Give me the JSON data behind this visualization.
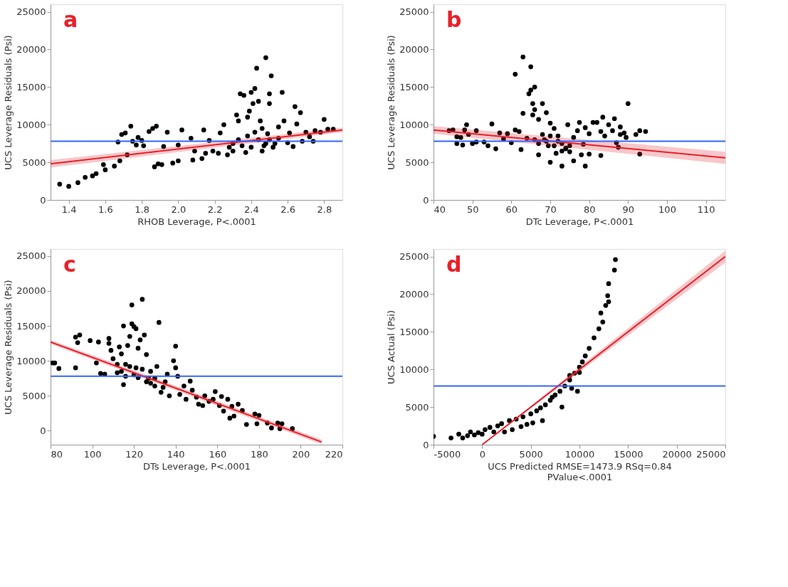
{
  "chart_data": [
    {
      "type": "scatter",
      "annotations": [
        "a"
      ],
      "xlabel": "RHOB Leverage, P<.0001",
      "ylabel": "UCS Leverage Residuals (Psi)",
      "xlim": [
        1.3,
        2.9
      ],
      "xticks": [
        1.4,
        1.6,
        1.8,
        {
          "value": 2,
          "label": "2.0"
        },
        2.2,
        2.4,
        2.6,
        2.8
      ],
      "ylim": [
        0,
        26000
      ],
      "yticks": [
        0,
        5000,
        10000,
        15000,
        20000,
        25000
      ],
      "grid": false,
      "legend": false,
      "marker": "circle",
      "ref_lines": [
        {
          "axis": "y",
          "value": 7800,
          "color": "#3366ff"
        }
      ],
      "series": [
        {
          "type": "scatter",
          "color": "#000000",
          "x": [
            1.35,
            1.4,
            1.45,
            1.49,
            1.53,
            1.55,
            1.59,
            1.6,
            1.65,
            1.67,
            1.68,
            1.69,
            1.71,
            1.72,
            1.74,
            1.75,
            1.77,
            1.78,
            1.8,
            1.81,
            1.84,
            1.86,
            1.87,
            1.88,
            1.89,
            1.91,
            1.92,
            1.94,
            1.97,
            2.0,
            2.0,
            2.02,
            2.07,
            2.08,
            2.09,
            2.13,
            2.14,
            2.15,
            2.17,
            2.19,
            2.22,
            2.23,
            2.25,
            2.27,
            2.3,
            2.32,
            2.33,
            2.34,
            2.36,
            2.37,
            2.38,
            2.39,
            2.4,
            2.41,
            2.42,
            2.43,
            2.44,
            2.45,
            2.46,
            2.47,
            2.48,
            2.49,
            2.5,
            2.5,
            2.51,
            2.52,
            2.55,
            2.57,
            2.58,
            2.6,
            2.61,
            2.63,
            2.64,
            2.65,
            2.67,
            2.68,
            2.7,
            2.72,
            2.74,
            2.75,
            2.78,
            2.8,
            2.82,
            2.85,
            2.28,
            2.3,
            2.33,
            2.35,
            2.38,
            2.4,
            2.42,
            2.44,
            2.46,
            2.48,
            2.5,
            2.53,
            2.55
          ],
          "values": [
            2100,
            1800,
            2300,
            3000,
            3200,
            3500,
            4700,
            4000,
            4500,
            7700,
            5200,
            8700,
            8900,
            6000,
            9800,
            7800,
            7300,
            8300,
            7900,
            7200,
            9100,
            9500,
            4400,
            9800,
            4800,
            4700,
            7100,
            9000,
            4900,
            7300,
            5200,
            9300,
            8200,
            5300,
            6500,
            5500,
            9300,
            6200,
            7900,
            6500,
            6200,
            8900,
            10000,
            6000,
            7500,
            11300,
            10500,
            14100,
            13900,
            6300,
            11000,
            11800,
            14300,
            12800,
            14800,
            17500,
            13100,
            10500,
            6500,
            7200,
            18900,
            8800,
            14100,
            12800,
            16500,
            7000,
            9700,
            14300,
            10500,
            7600,
            8900,
            7100,
            12400,
            10100,
            11600,
            7800,
            9000,
            8400,
            7800,
            9200,
            9000,
            10700,
            9400,
            9400,
            7000,
            6500,
            8000,
            7200,
            8500,
            7000,
            9000,
            8000,
            9500,
            7500,
            8000,
            7500,
            8200
          ]
        },
        {
          "type": "line",
          "color": "#e8202a",
          "marker": "none",
          "line_style": "solid",
          "x": [
            1.3,
            2.9
          ],
          "values": [
            4800,
            9300
          ],
          "lower": [
            4300,
            9000
          ],
          "upper": [
            5300,
            9600
          ]
        }
      ]
    },
    {
      "type": "scatter",
      "annotations": [
        "b"
      ],
      "xlabel": "DTc Leverage, P<.0001",
      "ylabel": "UCS Leverage Residuals (Psi)",
      "xlim": [
        40,
        115
      ],
      "xticks": [
        40,
        50,
        60,
        70,
        80,
        90,
        100,
        110
      ],
      "ylim": [
        0,
        26000
      ],
      "yticks": [
        0,
        5000,
        10000,
        15000,
        20000,
        25000
      ],
      "grid": false,
      "legend": false,
      "marker": "circle",
      "ref_lines": [
        {
          "axis": "y",
          "value": 7800,
          "color": "#3366ff"
        }
      ],
      "series": [
        {
          "type": "scatter",
          "color": "#000000",
          "x": [
            44,
            45,
            46,
            46,
            47,
            47.5,
            48,
            48.5,
            49,
            50,
            51,
            51,
            53,
            54,
            55,
            56,
            57,
            58,
            59,
            60,
            61,
            62,
            62.5,
            63,
            63,
            61,
            64,
            64.5,
            65,
            65,
            65.5,
            65.5,
            66,
            66,
            67,
            67,
            68,
            68.5,
            69,
            69.5,
            70,
            70,
            71,
            71.5,
            72,
            73,
            73,
            74,
            74.5,
            75,
            76,
            76,
            77,
            77.5,
            78,
            78.5,
            79,
            79,
            80,
            80,
            81,
            82,
            83,
            83,
            83.5,
            84,
            85,
            86,
            86.5,
            87,
            87.5,
            88,
            88,
            89,
            90,
            89.5,
            92,
            93,
            93,
            94.5,
            66,
            67,
            68,
            69,
            70,
            71,
            72,
            73,
            74,
            75
          ],
          "values": [
            9200,
            9300,
            7500,
            8400,
            8300,
            7300,
            9300,
            10000,
            8700,
            7500,
            9200,
            7700,
            7700,
            7200,
            10100,
            6800,
            8900,
            8100,
            8800,
            7600,
            9300,
            9100,
            6700,
            11500,
            19000,
            16700,
            8200,
            14100,
            17700,
            14600,
            12800,
            11300,
            15000,
            12000,
            6000,
            10700,
            12800,
            8000,
            11600,
            7200,
            5000,
            10200,
            9500,
            6200,
            8500,
            4500,
            7500,
            6800,
            10000,
            7200,
            5200,
            8300,
            9200,
            10300,
            6000,
            7400,
            4500,
            9600,
            6100,
            8800,
            10300,
            10300,
            5900,
            9100,
            11000,
            8500,
            10000,
            9200,
            10800,
            7600,
            7000,
            9700,
            8700,
            8900,
            12800,
            8300,
            8700,
            9200,
            6100,
            9100,
            8000,
            7500,
            8700,
            7800,
            8500,
            7200,
            7800,
            6500,
            6900,
            6400
          ]
        },
        {
          "type": "line",
          "color": "#e8202a",
          "marker": "none",
          "line_style": "solid",
          "x": [
            40,
            115
          ],
          "values": [
            9300,
            5600
          ],
          "lower": [
            8800,
            4800
          ],
          "upper": [
            9800,
            6400
          ]
        }
      ]
    },
    {
      "type": "scatter",
      "annotations": [
        "c"
      ],
      "xlabel": "DTs Leverage, P<.0001",
      "ylabel": "UCS Leverage Residuals (Psi)",
      "xlim": [
        80,
        220
      ],
      "xticks": [
        80,
        100,
        120,
        140,
        160,
        180,
        200,
        220
      ],
      "ylim": [
        -2000,
        26000
      ],
      "yticks": [
        0,
        5000,
        10000,
        15000,
        20000,
        25000
      ],
      "grid": false,
      "legend": false,
      "marker": "circle",
      "ref_lines": [
        {
          "axis": "y",
          "value": 7800,
          "color": "#3366ff"
        }
      ],
      "series": [
        {
          "type": "scatter",
          "color": "#000000",
          "x": [
            81,
            82,
            84,
            92,
            92,
            93,
            94,
            99,
            102,
            103,
            104,
            106,
            108,
            108,
            109,
            110,
            112,
            113,
            114,
            115,
            115,
            116,
            117,
            118,
            119,
            119,
            120,
            121,
            121,
            122,
            123,
            124,
            125,
            126,
            127,
            128,
            130,
            131,
            132,
            133,
            135,
            136,
            137,
            139,
            140,
            140,
            141,
            142,
            144,
            145,
            147,
            148,
            150,
            151,
            153,
            154,
            156,
            158,
            159,
            161,
            162,
            163,
            165,
            166,
            167,
            168,
            170,
            172,
            174,
            178,
            179,
            180,
            184,
            186,
            189,
            190,
            191,
            196,
            112,
            114,
            116,
            118,
            120,
            122,
            124,
            126,
            128,
            130,
            134
          ],
          "values": [
            9700,
            9700,
            8900,
            13400,
            9000,
            12600,
            13700,
            12900,
            9700,
            12700,
            8200,
            8100,
            13200,
            12500,
            11500,
            10300,
            8300,
            12000,
            11000,
            6600,
            15000,
            9500,
            12200,
            13500,
            18000,
            15300,
            14900,
            14600,
            9000,
            11800,
            13000,
            18800,
            13700,
            10900,
            7500,
            8500,
            6400,
            9200,
            15500,
            5500,
            7000,
            8100,
            5000,
            10000,
            9000,
            12100,
            7800,
            5200,
            6400,
            4500,
            7100,
            5800,
            4800,
            3800,
            3600,
            5000,
            4200,
            4500,
            5600,
            3600,
            4900,
            2800,
            4500,
            1800,
            3500,
            2100,
            3800,
            2900,
            900,
            2400,
            1000,
            2200,
            1100,
            400,
            1100,
            300,
            1000,
            300,
            9500,
            8500,
            7800,
            9200,
            8000,
            7600,
            8800,
            7000,
            6800,
            7500,
            6200
          ]
        },
        {
          "type": "line",
          "color": "#e8202a",
          "marker": "none",
          "line_style": "solid",
          "x": [
            80,
            210
          ],
          "values": [
            12700,
            -1600
          ],
          "lower": [
            12400,
            -1950
          ],
          "upper": [
            13000,
            -1250
          ]
        }
      ]
    },
    {
      "type": "scatter",
      "annotations": [
        "d"
      ],
      "xlabel": "UCS Predicted RMSE=1473.9 RSq=0.84\nPValue<.0001",
      "ylabel": "UCS Actual (Psi)",
      "xlim": [
        -5000,
        25000
      ],
      "xticks": [
        -5000,
        0,
        5000,
        10000,
        15000,
        20000,
        25000
      ],
      "ylim": [
        0,
        26000
      ],
      "yticks": [
        0,
        5000,
        10000,
        15000,
        20000,
        25000
      ],
      "grid": false,
      "legend": false,
      "marker": "circle",
      "ref_lines": [
        {
          "axis": "y",
          "value": 7800,
          "color": "#3366ff"
        }
      ],
      "series": [
        {
          "type": "scatter",
          "color": "#000000",
          "x": [
            -5000,
            -3200,
            -2400,
            -2000,
            -1500,
            -1200,
            -800,
            -400,
            0,
            300,
            800,
            1200,
            1600,
            2300,
            2000,
            2800,
            3100,
            3500,
            4000,
            4200,
            4600,
            5000,
            5200,
            5600,
            6200,
            6000,
            6500,
            7000,
            7500,
            8000,
            8200,
            8500,
            9000,
            9200,
            9800,
            9500,
            10000,
            10300,
            10600,
            11000,
            11500,
            12000,
            12400,
            12200,
            12700,
            13000,
            12900,
            13000,
            13600,
            13700,
            9000,
            10000,
            7200
          ],
          "values": [
            1100,
            900,
            1400,
            900,
            1200,
            1700,
            1300,
            1600,
            1400,
            2000,
            2300,
            1700,
            2500,
            1700,
            2800,
            3200,
            2000,
            3400,
            2400,
            3700,
            2700,
            4100,
            2900,
            4500,
            3200,
            4900,
            5300,
            5900,
            6600,
            7100,
            5000,
            7800,
            8600,
            7500,
            7100,
            9500,
            10300,
            11000,
            11800,
            12800,
            14200,
            15400,
            16300,
            17500,
            18500,
            19000,
            19800,
            21400,
            23200,
            24600,
            9200,
            9600,
            6300
          ]
        },
        {
          "type": "line",
          "color": "#e8202a",
          "marker": "none",
          "line_style": "solid",
          "x": [
            0,
            25000
          ],
          "values": [
            0,
            25000
          ],
          "lower": [
            0,
            24200
          ],
          "upper": [
            0,
            25800
          ]
        }
      ]
    }
  ]
}
